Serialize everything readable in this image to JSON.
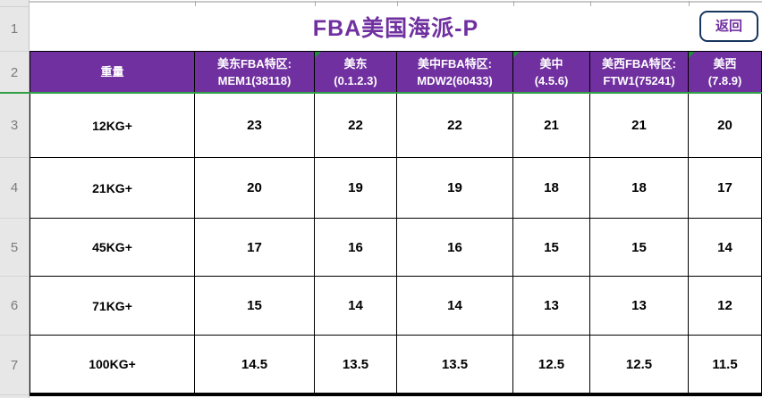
{
  "title": {
    "text": "FBA美国海派-P"
  },
  "back_button": {
    "label": "返回"
  },
  "sheet": {
    "row_numbers": [
      "1",
      "2",
      "3",
      "4",
      "5",
      "6",
      "7"
    ],
    "table": {
      "columns": [
        {
          "line1": "重量",
          "line2": "",
          "flag": false
        },
        {
          "line1": "美东FBA特区:",
          "line2": "MEM1(38118)",
          "flag": false
        },
        {
          "line1": "美东",
          "line2": "(0.1.2.3)",
          "flag": true
        },
        {
          "line1": "美中FBA特区:",
          "line2": "MDW2(60433)",
          "flag": false
        },
        {
          "line1": "美中",
          "line2": "(4.5.6)",
          "flag": true
        },
        {
          "line1": "美西FBA特区:",
          "line2": "FTW1(75241)",
          "flag": false
        },
        {
          "line1": "美西",
          "line2": "(7.8.9)",
          "flag": true
        }
      ],
      "rows": [
        {
          "weight": "12KG+",
          "values": [
            "23",
            "22",
            "22",
            "21",
            "21",
            "20"
          ]
        },
        {
          "weight": "21KG+",
          "values": [
            "20",
            "19",
            "19",
            "18",
            "18",
            "17"
          ]
        },
        {
          "weight": "45KG+",
          "values": [
            "17",
            "16",
            "16",
            "15",
            "15",
            "14"
          ]
        },
        {
          "weight": "71KG+",
          "values": [
            "15",
            "14",
            "14",
            "13",
            "13",
            "12"
          ]
        },
        {
          "weight": "100KG+",
          "values": [
            "14.5",
            "13.5",
            "13.5",
            "12.5",
            "12.5",
            "11.5"
          ]
        }
      ]
    }
  },
  "colors": {
    "header_bg": "#7030A0",
    "title_text": "#7030A0",
    "freeze_line": "#2f9e44",
    "flag_green": "#1e8e3e",
    "button_border": "#17375E",
    "button_text": "#7030A0"
  }
}
